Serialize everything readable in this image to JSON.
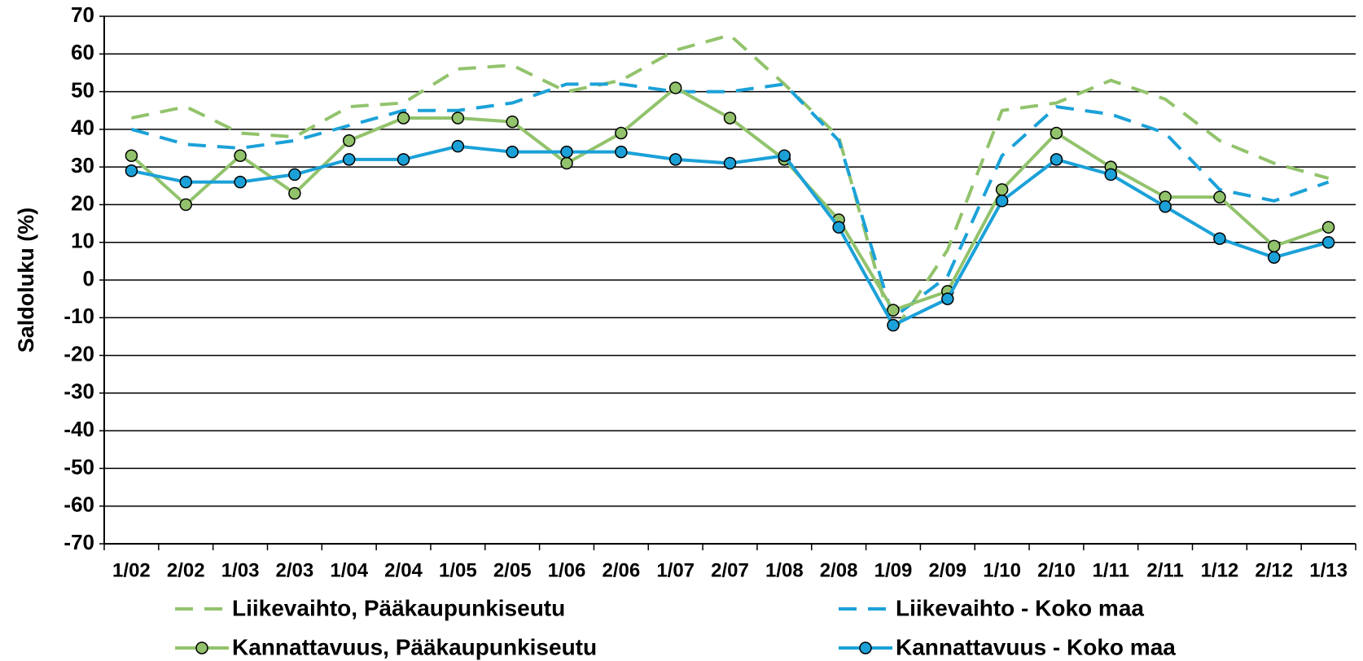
{
  "chart_data": {
    "type": "line",
    "y_label": "Saldoluku (%)",
    "categories": [
      "1/02",
      "2/02",
      "1/03",
      "2/03",
      "1/04",
      "2/04",
      "1/05",
      "2/05",
      "1/06",
      "2/06",
      "1/07",
      "2/07",
      "1/08",
      "2/08",
      "1/09",
      "2/09",
      "1/10",
      "2/10",
      "1/11",
      "2/11",
      "1/12",
      "2/12",
      "1/13"
    ],
    "series": [
      {
        "name": "Liikevaihto, Pääkaupunkiseutu",
        "color": "#92c36c",
        "dashed": true,
        "markers": false,
        "values": [
          43,
          46,
          39,
          38,
          46,
          47,
          56,
          57,
          50,
          53,
          61,
          65,
          52,
          38,
          -14,
          8,
          45,
          47,
          53,
          48,
          37,
          31,
          27
        ]
      },
      {
        "name": "Liikevaihto - Koko maa",
        "color": "#1ba1d8",
        "dashed": true,
        "markers": false,
        "values": [
          40,
          36,
          35,
          37,
          41,
          45,
          45,
          47,
          52,
          52,
          50,
          50,
          52,
          37,
          -10,
          1,
          33,
          46,
          44,
          39,
          24,
          21,
          26
        ]
      },
      {
        "name": "Kannattavuus, Pääkaupunkiseutu",
        "color": "#92c36c",
        "dashed": false,
        "markers": true,
        "values": [
          33,
          20,
          33,
          23,
          37,
          43,
          43,
          42,
          31,
          39,
          51,
          43,
          32,
          16,
          -8,
          -3,
          24,
          39,
          30,
          22,
          22,
          9,
          14
        ]
      },
      {
        "name": "Kannattavuus - Koko maa",
        "color": "#1ba1d8",
        "dashed": false,
        "markers": true,
        "values": [
          29,
          26,
          26,
          28,
          32,
          32,
          35.5,
          34,
          34,
          34,
          32,
          31,
          33,
          14,
          -12,
          -5,
          21,
          32,
          28,
          19.5,
          11,
          6,
          10
        ]
      }
    ],
    "ylim": [
      -70,
      70
    ],
    "yticks": [
      -70,
      -60,
      -50,
      -40,
      -30,
      -20,
      -10,
      0,
      10,
      20,
      30,
      40,
      50,
      60,
      70
    ],
    "grid": true
  }
}
